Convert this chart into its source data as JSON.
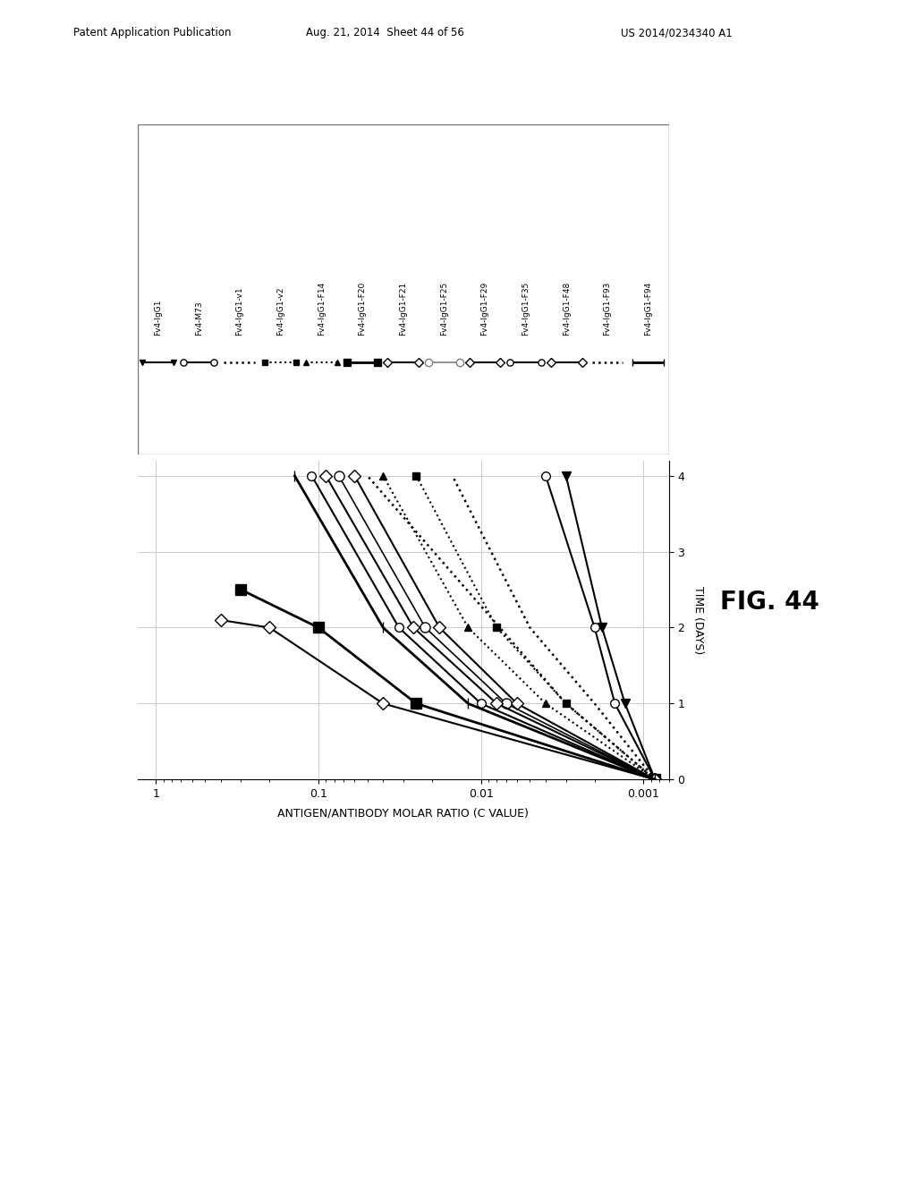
{
  "header_left": "Patent Application Publication",
  "header_center": "Aug. 21, 2014  Sheet 44 of 56",
  "header_right": "US 2014/0234340 A1",
  "fig_label": "FIG. 44",
  "xlabel": "ANTIGEN/ANTIBODY MOLAR RATIO (C VALUE)",
  "ylabel": "TIME (DAYS)",
  "yticks": [
    0,
    1,
    2,
    3,
    4
  ],
  "xtick_vals": [
    1,
    0.1,
    0.01,
    0.001
  ],
  "xtick_labels": [
    "1",
    "0.1",
    "0.01",
    "0.001"
  ],
  "series": [
    {
      "label": "Fv4-IgG1",
      "times": [
        0,
        1,
        2,
        4
      ],
      "ratios": [
        0.00085,
        0.0013,
        0.0018,
        0.003
      ],
      "color": "black",
      "ls": "-",
      "marker": "v",
      "filled": true,
      "lw": 1.5,
      "ms": 7
    },
    {
      "label": "Fv4-M73",
      "times": [
        0,
        1,
        2,
        4
      ],
      "ratios": [
        0.00085,
        0.0015,
        0.002,
        0.004
      ],
      "color": "black",
      "ls": "-",
      "marker": "o",
      "filled": false,
      "lw": 1.5,
      "ms": 7
    },
    {
      "label": "Fv4-IgG1-v1",
      "times": [
        0,
        1,
        2,
        4
      ],
      "ratios": [
        0.00085,
        0.002,
        0.005,
        0.015
      ],
      "color": "black",
      "ls": ":",
      "marker": null,
      "filled": false,
      "lw": 1.8,
      "ms": 0
    },
    {
      "label": "Fv4-IgG1-v2",
      "times": [
        0,
        1,
        2,
        4
      ],
      "ratios": [
        0.00085,
        0.003,
        0.008,
        0.025
      ],
      "color": "black",
      "ls": ":",
      "marker": "s",
      "filled": true,
      "lw": 1.5,
      "ms": 6
    },
    {
      "label": "Fv4-IgG1-F14",
      "times": [
        0,
        1,
        2,
        4
      ],
      "ratios": [
        0.00085,
        0.004,
        0.012,
        0.04
      ],
      "color": "black",
      "ls": ":",
      "marker": "^",
      "filled": true,
      "lw": 1.5,
      "ms": 6
    },
    {
      "label": "Fv4-IgG1-F20",
      "times": [
        0,
        1,
        2,
        2.5
      ],
      "ratios": [
        0.00085,
        0.025,
        0.1,
        0.3
      ],
      "color": "black",
      "ls": "-",
      "marker": "s",
      "filled": true,
      "lw": 2.0,
      "ms": 8
    },
    {
      "label": "Fv4-IgG1-F21",
      "times": [
        0,
        1,
        2,
        4
      ],
      "ratios": [
        0.00085,
        0.006,
        0.018,
        0.06
      ],
      "color": "black",
      "ls": "-",
      "marker": "D",
      "filled": false,
      "lw": 1.5,
      "ms": 7
    },
    {
      "label": "Fv4-IgG1-F25",
      "times": [
        0,
        1,
        2,
        4
      ],
      "ratios": [
        0.00085,
        0.007,
        0.022,
        0.075
      ],
      "color": "black",
      "ls": "-",
      "marker": "o",
      "filled": false,
      "lw": 1.2,
      "ms": 8
    },
    {
      "label": "Fv4-IgG1-F29",
      "times": [
        0,
        1,
        2,
        4
      ],
      "ratios": [
        0.00085,
        0.008,
        0.026,
        0.09
      ],
      "color": "black",
      "ls": "-",
      "marker": "D",
      "filled": false,
      "lw": 1.5,
      "ms": 7
    },
    {
      "label": "Fv4-IgG1-F35",
      "times": [
        0,
        1,
        2,
        4
      ],
      "ratios": [
        0.00085,
        0.01,
        0.032,
        0.11
      ],
      "color": "black",
      "ls": "-",
      "marker": "o",
      "filled": false,
      "lw": 1.5,
      "ms": 7
    },
    {
      "label": "Fv4-IgG1-F48",
      "times": [
        0,
        1,
        2,
        2.1
      ],
      "ratios": [
        0.00085,
        0.04,
        0.2,
        0.4
      ],
      "color": "black",
      "ls": "-",
      "marker": "D",
      "filled": false,
      "lw": 1.5,
      "ms": 7
    },
    {
      "label": "Fv4-IgG1-F93",
      "times": [
        0,
        1,
        4
      ],
      "ratios": [
        0.00085,
        0.003,
        0.05
      ],
      "color": "black",
      "ls": ":",
      "marker": null,
      "filled": false,
      "lw": 1.8,
      "ms": 0
    },
    {
      "label": "Fv4-IgG1-F94",
      "times": [
        0,
        1,
        2,
        4
      ],
      "ratios": [
        0.00085,
        0.012,
        0.04,
        0.14
      ],
      "color": "black",
      "ls": "-",
      "marker": "|",
      "filled": false,
      "lw": 2.0,
      "ms": 8
    }
  ],
  "legend_series": [
    {
      "marker": "v",
      "filled": true,
      "ls": "-",
      "color": "black",
      "lw": 1.5,
      "ms": 6
    },
    {
      "marker": "o",
      "filled": false,
      "ls": "-",
      "color": "black",
      "lw": 1.5,
      "ms": 7
    },
    {
      "marker": null,
      "filled": false,
      "ls": ":",
      "color": "black",
      "lw": 1.8,
      "ms": 0
    },
    {
      "marker": "s",
      "filled": true,
      "ls": ":",
      "color": "black",
      "lw": 1.5,
      "ms": 6
    },
    {
      "marker": "^",
      "filled": true,
      "ls": ":",
      "color": "black",
      "lw": 1.5,
      "ms": 6
    },
    {
      "marker": "s",
      "filled": true,
      "ls": "-",
      "color": "black",
      "lw": 2.0,
      "ms": 8
    },
    {
      "marker": "D",
      "filled": false,
      "ls": "-",
      "color": "black",
      "lw": 1.5,
      "ms": 7
    },
    {
      "marker": "o",
      "filled": false,
      "ls": "-",
      "color": "gray",
      "lw": 1.2,
      "ms": 8
    },
    {
      "marker": "D",
      "filled": false,
      "ls": "-",
      "color": "black",
      "lw": 1.5,
      "ms": 7
    },
    {
      "marker": "o",
      "filled": false,
      "ls": "-",
      "color": "black",
      "lw": 1.5,
      "ms": 7
    },
    {
      "marker": "D",
      "filled": false,
      "ls": "-",
      "color": "black",
      "lw": 1.5,
      "ms": 7
    },
    {
      "marker": null,
      "filled": false,
      "ls": ":",
      "color": "black",
      "lw": 1.8,
      "ms": 0
    },
    {
      "marker": "|",
      "filled": false,
      "ls": "-",
      "color": "black",
      "lw": 2.0,
      "ms": 8
    }
  ]
}
